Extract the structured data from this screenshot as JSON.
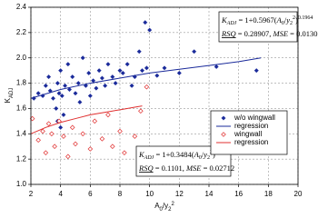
{
  "chart_data": {
    "type": "scatter",
    "x_label_parts": [
      "A",
      "0",
      "/y",
      "2",
      "2"
    ],
    "y_label_parts": [
      "K",
      "ADJ"
    ],
    "xlim": [
      2,
      20
    ],
    "xticks": [
      2,
      4,
      6,
      8,
      10,
      12,
      14,
      16,
      18,
      20
    ],
    "ylim": [
      1,
      2.4
    ],
    "yticks": [
      {
        "value": 1,
        "label": "1.0"
      },
      1.2,
      1.4,
      1.6,
      1.8,
      {
        "value": 2,
        "label": "2.0"
      },
      2.2,
      2.4
    ],
    "grid": true,
    "legend": "right",
    "series": [
      {
        "name": "w/o wingwall",
        "mode": "markers",
        "marker": "diamond-filled",
        "color": "#1a2a9a",
        "x": [
          2.2,
          2.5,
          2.8,
          3.0,
          3.2,
          3.3,
          3.5,
          3.7,
          3.8,
          3.9,
          4.0,
          4.1,
          4.2,
          4.3,
          4.5,
          4.6,
          4.8,
          5.0,
          5.2,
          5.3,
          5.5,
          5.7,
          5.9,
          6.0,
          6.2,
          6.4,
          6.6,
          6.8,
          7.0,
          7.2,
          7.5,
          7.7,
          8.0,
          8.2,
          8.5,
          8.8,
          9.0,
          9.3,
          9.5,
          9.7,
          9.8,
          10.0,
          10.5,
          11,
          12,
          13,
          14.5,
          17.2,
          3.8,
          4.0
        ],
        "values": [
          1.68,
          1.72,
          1.7,
          1.78,
          1.85,
          1.74,
          1.68,
          1.6,
          1.8,
          1.72,
          1.9,
          1.7,
          1.55,
          1.78,
          1.95,
          1.75,
          1.85,
          1.72,
          1.8,
          1.65,
          2.0,
          1.78,
          1.88,
          1.7,
          1.82,
          1.76,
          1.9,
          1.84,
          1.78,
          1.95,
          1.85,
          1.8,
          1.9,
          1.88,
          1.95,
          1.78,
          1.85,
          2.05,
          1.9,
          2.28,
          1.92,
          2.22,
          1.86,
          1.92,
          1.88,
          2.05,
          1.93,
          1.9,
          1.5,
          1.45
        ]
      },
      {
        "name": "regression",
        "mode": "line",
        "color": "#1a2a9a",
        "x": [
          2,
          4,
          6,
          8,
          10,
          12,
          14,
          16,
          17.5
        ],
        "values": [
          1.68,
          1.75,
          1.8,
          1.84,
          1.88,
          1.91,
          1.94,
          1.97,
          2.0
        ]
      },
      {
        "name": "wingwall",
        "mode": "markers",
        "marker": "diamond-open",
        "color": "#e03030",
        "x": [
          2.1,
          2.5,
          2.8,
          3.0,
          3.2,
          3.4,
          3.6,
          3.9,
          4.2,
          4.5,
          4.8,
          5.0,
          5.5,
          6.0,
          6.3,
          6.8,
          7.2,
          7.5,
          8.0,
          8.3,
          9.0,
          9.4,
          9.8
        ],
        "values": [
          1.52,
          1.35,
          1.42,
          1.25,
          1.48,
          1.4,
          1.3,
          1.5,
          1.38,
          1.22,
          1.45,
          1.32,
          1.4,
          1.28,
          1.5,
          1.36,
          1.55,
          1.3,
          1.42,
          1.25,
          1.38,
          1.58,
          1.77
        ]
      },
      {
        "name": "regression",
        "mode": "line",
        "color": "#e03030",
        "x": [
          2,
          3,
          4,
          5,
          6,
          7,
          8,
          9,
          9.5
        ],
        "values": [
          1.4,
          1.45,
          1.49,
          1.52,
          1.55,
          1.57,
          1.59,
          1.61,
          1.62
        ]
      }
    ],
    "annotations": [
      {
        "line1": [
          "K",
          "ADJ",
          " = 1+0.5967(",
          "A",
          "0",
          "/",
          "y",
          "2",
          "2",
          ")",
          "0.1964"
        ],
        "line2": [
          "RSQ",
          " = 0.28907, ",
          "MSE",
          " = 0.0130"
        ]
      },
      {
        "line1": [
          "K",
          "ADJ",
          " = 1+0.3484(",
          "A",
          "0",
          "/",
          "y",
          "2",
          "2",
          ")",
          "0.3073"
        ],
        "line2": [
          "RSQ",
          " = 0.1101, ",
          "MSE",
          " = 0.02712"
        ]
      }
    ]
  }
}
